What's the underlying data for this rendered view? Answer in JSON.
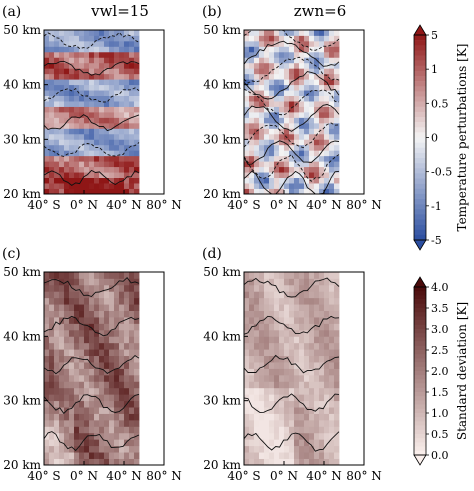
{
  "chart_data": [
    {
      "panel": "(a)",
      "title": "vwl=15",
      "type": "heatmap",
      "quantity": "temperature perturbation",
      "xlim": [
        -40,
        80
      ],
      "ylim": [
        20,
        50
      ],
      "data_extent_lon": [
        -40,
        55
      ],
      "x_ticks": [
        "40° S",
        "0° N",
        "40° N",
        "80° N"
      ],
      "y_ticks": [
        "20 km",
        "30 km",
        "40 km",
        "50 km"
      ],
      "bands_by_altitude": [
        {
          "alt": [
            20,
            23
          ],
          "value": 3
        },
        {
          "alt": [
            23,
            27
          ],
          "value": 2
        },
        {
          "alt": [
            27,
            32
          ],
          "value": -1.5
        },
        {
          "alt": [
            32,
            36
          ],
          "value": 1.5
        },
        {
          "alt": [
            36,
            41
          ],
          "value": -1.5
        },
        {
          "alt": [
            41,
            46
          ],
          "value": 2
        },
        {
          "alt": [
            46,
            50
          ],
          "value": -1.5
        }
      ],
      "colormap": "diverging-blue-white-red",
      "colorbar": "temperature"
    },
    {
      "panel": "(b)",
      "title": "zwn=6",
      "type": "heatmap",
      "quantity": "temperature perturbation",
      "xlim": [
        -40,
        80
      ],
      "ylim": [
        20,
        50
      ],
      "data_extent_lon": [
        -40,
        55
      ],
      "x_ticks": [
        "40° S",
        "0° N",
        "40° N",
        "80° N"
      ],
      "y_ticks": [
        "20 km",
        "30 km",
        "40 km",
        "50 km"
      ],
      "pattern": "small-scale alternating warm and cold cells",
      "colormap": "diverging-blue-white-red",
      "colorbar": "temperature"
    },
    {
      "panel": "(c)",
      "type": "heatmap",
      "quantity": "standard deviation",
      "xlim": [
        -40,
        80
      ],
      "ylim": [
        20,
        50
      ],
      "data_extent_lon": [
        -40,
        55
      ],
      "x_ticks": [
        "40° S",
        "0° N",
        "40° N",
        "80° N"
      ],
      "y_ticks": [
        "20 km",
        "30 km",
        "40 km",
        "50 km"
      ],
      "typical_value": 2.0,
      "max_value": 3.5,
      "colormap": "sequential-white-red",
      "colorbar": "stddev"
    },
    {
      "panel": "(d)",
      "type": "heatmap",
      "quantity": "standard deviation",
      "xlim": [
        -40,
        80
      ],
      "ylim": [
        20,
        50
      ],
      "data_extent_lon": [
        -40,
        55
      ],
      "x_ticks": [
        "40° S",
        "0° N",
        "40° N",
        "80° N"
      ],
      "y_ticks": [
        "20 km",
        "30 km",
        "40 km",
        "50 km"
      ],
      "typical_value": 1.2,
      "max_value": 2.0,
      "colormap": "sequential-white-red",
      "colorbar": "stddev"
    }
  ],
  "colorbars": {
    "temperature": {
      "label": "Temperature perturbations [K]",
      "ticks": [
        "5",
        "1",
        "0.5",
        "0",
        "-0.5",
        "-1",
        "-5"
      ]
    },
    "stddev": {
      "label": "Standard deviation [K]",
      "ticks": [
        "4.0",
        "3.5",
        "3.0",
        "2.5",
        "2.0",
        "1.5",
        "1.0",
        "0.5",
        "0.0"
      ]
    }
  },
  "colors": {
    "cold": "#2b4ea0",
    "neutral": "#f4f4f4",
    "warm": "#8f1616",
    "sd_low": "#fbf1ee",
    "sd_high": "#4a0a0a"
  }
}
